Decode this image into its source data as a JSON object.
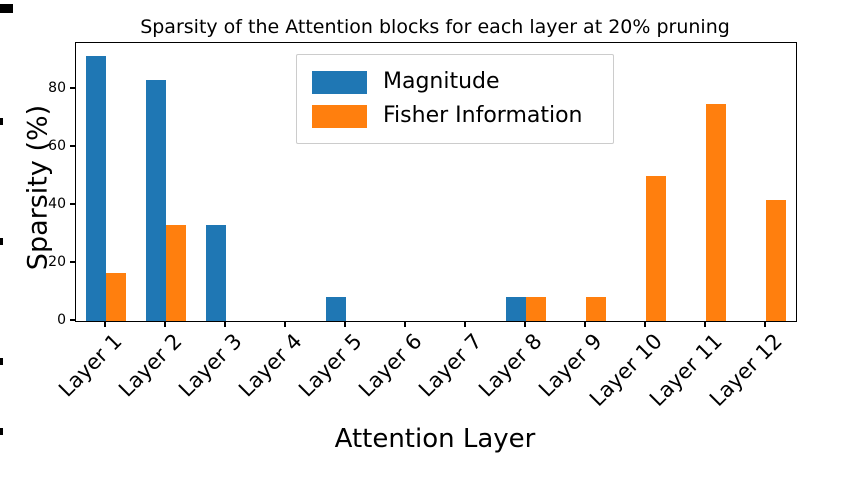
{
  "figure": {
    "background": "#ffffff"
  },
  "chart_data": {
    "type": "bar",
    "title": "Sparsity of the Attention blocks for each layer at 20% pruning",
    "xlabel": "Attention Layer",
    "ylabel": "Sparsity (%)",
    "categories": [
      "Layer 1",
      "Layer 2",
      "Layer 3",
      "Layer 4",
      "Layer 5",
      "Layer 6",
      "Layer 7",
      "Layer 8",
      "Layer 9",
      "Layer 10",
      "Layer 11",
      "Layer 12"
    ],
    "series": [
      {
        "name": "Magnitude",
        "color": "#1f77b4",
        "values": [
          91.67,
          83.33,
          33.33,
          0,
          8.33,
          0,
          0,
          8.33,
          0,
          0,
          0,
          0
        ]
      },
      {
        "name": "Fisher Information",
        "color": "#ff7f0e",
        "values": [
          16.67,
          33.33,
          0,
          0,
          0,
          0,
          0,
          8.33,
          8.33,
          50,
          75,
          41.67
        ]
      }
    ],
    "yticks": [
      0,
      20,
      40,
      60,
      80
    ],
    "ylim": [
      0,
      96
    ],
    "grid": false,
    "legend_position": "upper center-left inside",
    "axis_color": "#000000"
  }
}
